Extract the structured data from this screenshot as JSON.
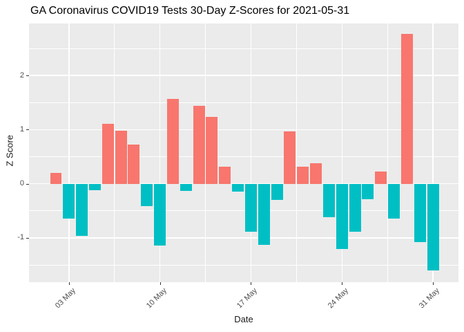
{
  "chart_data": {
    "type": "bar",
    "title": "GA Coronavirus COVID19 Tests 30-Day Z-Scores for 2021-05-31",
    "xlabel": "Date",
    "ylabel": "Z Score",
    "legend_position": "none",
    "grid": "major+minor",
    "panel_bg": "#EBEBEB",
    "grid_color": "#FFFFFF",
    "tick_mark_color": "#333333",
    "tick_label_color": "#4D4D4D",
    "positive_color": "#F8766D",
    "negative_color": "#00BFC4",
    "y_domain": [
      -1.82,
      2.96
    ],
    "y_tick_values": [
      -1,
      0,
      1,
      2
    ],
    "y_tick_labels": [
      "-1",
      "0",
      "1",
      "2"
    ],
    "y_minor_values": [
      -1.5,
      -0.5,
      0.5,
      1.5,
      2.5
    ],
    "x_domain_days": [
      -0.07,
      32.96
    ],
    "x_tick_days": [
      3,
      10,
      17,
      24,
      31
    ],
    "x_tick_labels": [
      "03 May",
      "10 May",
      "17 May",
      "24 May",
      "31 May"
    ],
    "x_minor_days": [
      6.5,
      13.5,
      20.5,
      27.5
    ],
    "bar_width_days": 0.9,
    "dates": [
      "2021-05-02",
      "2021-05-03",
      "2021-05-04",
      "2021-05-05",
      "2021-05-06",
      "2021-05-07",
      "2021-05-08",
      "2021-05-09",
      "2021-05-10",
      "2021-05-11",
      "2021-05-12",
      "2021-05-13",
      "2021-05-14",
      "2021-05-15",
      "2021-05-16",
      "2021-05-17",
      "2021-05-18",
      "2021-05-19",
      "2021-05-20",
      "2021-05-21",
      "2021-05-22",
      "2021-05-23",
      "2021-05-24",
      "2021-05-25",
      "2021-05-26",
      "2021-05-27",
      "2021-05-28",
      "2021-05-29",
      "2021-05-30",
      "2021-05-31"
    ],
    "days": [
      2,
      3,
      4,
      5,
      6,
      7,
      8,
      9,
      10,
      11,
      12,
      13,
      14,
      15,
      16,
      17,
      18,
      19,
      20,
      21,
      22,
      23,
      24,
      25,
      26,
      27,
      28,
      29,
      30,
      31
    ],
    "values": [
      0.2,
      -0.65,
      -0.96,
      -0.12,
      1.11,
      0.98,
      0.72,
      -0.41,
      -1.14,
      1.57,
      -0.13,
      1.44,
      1.23,
      0.31,
      -0.15,
      -0.89,
      -1.13,
      -0.3,
      0.96,
      0.32,
      0.38,
      -0.62,
      -1.21,
      -0.89,
      -0.29,
      0.23,
      -0.64,
      2.77,
      -1.08,
      -1.6
    ]
  }
}
